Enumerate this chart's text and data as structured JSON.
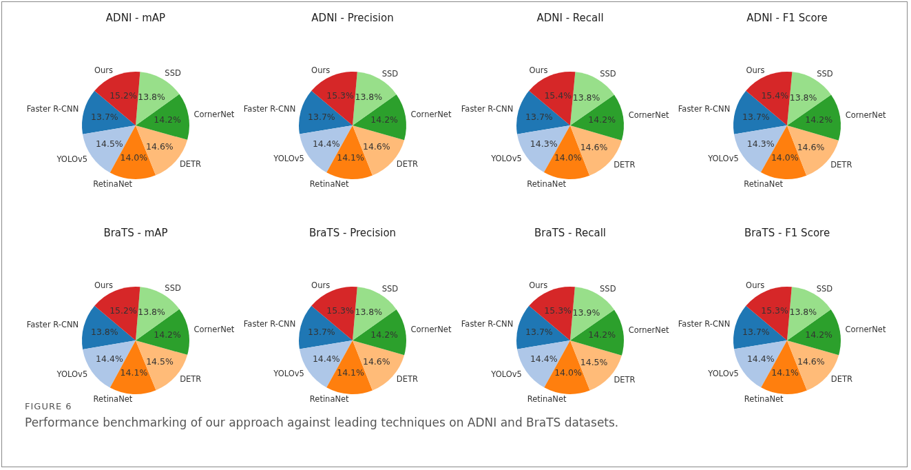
{
  "chart_data": [
    {
      "type": "pie",
      "title": "ADNI - mAP",
      "categories": [
        "Faster R-CNN",
        "YOLOv5",
        "RetinaNet",
        "DETR",
        "CornerNet",
        "SSD",
        "Ours"
      ],
      "values": [
        13.7,
        14.5,
        14.0,
        14.6,
        14.2,
        13.8,
        15.2
      ],
      "value_labels": [
        "13.7%",
        "14.5%",
        "14.0%",
        "14.6%",
        "14.2%",
        "13.8%",
        "15.2%"
      ],
      "colors": [
        "#1f77b4",
        "#aec7e8",
        "#ff7f0e",
        "#ffbb78",
        "#2ca02c",
        "#98df8a",
        "#d62728"
      ]
    },
    {
      "type": "pie",
      "title": "ADNI - Precision",
      "categories": [
        "Faster R-CNN",
        "YOLOv5",
        "RetinaNet",
        "DETR",
        "CornerNet",
        "SSD",
        "Ours"
      ],
      "values": [
        13.7,
        14.4,
        14.1,
        14.6,
        14.2,
        13.8,
        15.3
      ],
      "value_labels": [
        "13.7%",
        "14.4%",
        "14.1%",
        "14.6%",
        "14.2%",
        "13.8%",
        "15.3%"
      ],
      "colors": [
        "#1f77b4",
        "#aec7e8",
        "#ff7f0e",
        "#ffbb78",
        "#2ca02c",
        "#98df8a",
        "#d62728"
      ]
    },
    {
      "type": "pie",
      "title": "ADNI - Recall",
      "categories": [
        "Faster R-CNN",
        "YOLOv5",
        "RetinaNet",
        "DETR",
        "CornerNet",
        "SSD",
        "Ours"
      ],
      "values": [
        13.7,
        14.3,
        14.0,
        14.6,
        14.2,
        13.8,
        15.4
      ],
      "value_labels": [
        "13.7%",
        "14.3%",
        "14.0%",
        "14.6%",
        "14.2%",
        "13.8%",
        "15.4%"
      ],
      "colors": [
        "#1f77b4",
        "#aec7e8",
        "#ff7f0e",
        "#ffbb78",
        "#2ca02c",
        "#98df8a",
        "#d62728"
      ]
    },
    {
      "type": "pie",
      "title": "ADNI - F1 Score",
      "categories": [
        "Faster R-CNN",
        "YOLOv5",
        "RetinaNet",
        "DETR",
        "CornerNet",
        "SSD",
        "Ours"
      ],
      "values": [
        13.7,
        14.3,
        14.0,
        14.6,
        14.2,
        13.8,
        15.4
      ],
      "value_labels": [
        "13.7%",
        "14.3%",
        "14.0%",
        "14.6%",
        "14.2%",
        "13.8%",
        "15.4%"
      ],
      "colors": [
        "#1f77b4",
        "#aec7e8",
        "#ff7f0e",
        "#ffbb78",
        "#2ca02c",
        "#98df8a",
        "#d62728"
      ]
    },
    {
      "type": "pie",
      "title": "BraTS - mAP",
      "categories": [
        "Faster R-CNN",
        "YOLOv5",
        "RetinaNet",
        "DETR",
        "CornerNet",
        "SSD",
        "Ours"
      ],
      "values": [
        13.8,
        14.4,
        14.1,
        14.5,
        14.2,
        13.8,
        15.2
      ],
      "value_labels": [
        "13.8%",
        "14.4%",
        "14.1%",
        "14.5%",
        "14.2%",
        "13.8%",
        "15.2%"
      ],
      "colors": [
        "#1f77b4",
        "#aec7e8",
        "#ff7f0e",
        "#ffbb78",
        "#2ca02c",
        "#98df8a",
        "#d62728"
      ]
    },
    {
      "type": "pie",
      "title": "BraTS - Precision",
      "categories": [
        "Faster R-CNN",
        "YOLOv5",
        "RetinaNet",
        "DETR",
        "CornerNet",
        "SSD",
        "Ours"
      ],
      "values": [
        13.7,
        14.4,
        14.1,
        14.6,
        14.2,
        13.8,
        15.3
      ],
      "value_labels": [
        "13.7%",
        "14.4%",
        "14.1%",
        "14.6%",
        "14.2%",
        "13.8%",
        "15.3%"
      ],
      "colors": [
        "#1f77b4",
        "#aec7e8",
        "#ff7f0e",
        "#ffbb78",
        "#2ca02c",
        "#98df8a",
        "#d62728"
      ]
    },
    {
      "type": "pie",
      "title": "BraTS - Recall",
      "categories": [
        "Faster R-CNN",
        "YOLOv5",
        "RetinaNet",
        "DETR",
        "CornerNet",
        "SSD",
        "Ours"
      ],
      "values": [
        13.7,
        14.4,
        14.0,
        14.5,
        14.2,
        13.9,
        15.3
      ],
      "value_labels": [
        "13.7%",
        "14.4%",
        "14.0%",
        "14.5%",
        "14.2%",
        "13.9%",
        "15.3%"
      ],
      "colors": [
        "#1f77b4",
        "#aec7e8",
        "#ff7f0e",
        "#ffbb78",
        "#2ca02c",
        "#98df8a",
        "#d62728"
      ]
    },
    {
      "type": "pie",
      "title": "BraTS - F1 Score",
      "categories": [
        "Faster R-CNN",
        "YOLOv5",
        "RetinaNet",
        "DETR",
        "CornerNet",
        "SSD",
        "Ours"
      ],
      "values": [
        13.7,
        14.4,
        14.1,
        14.6,
        14.2,
        13.8,
        15.3
      ],
      "value_labels": [
        "13.7%",
        "14.4%",
        "14.1%",
        "14.6%",
        "14.2%",
        "13.8%",
        "15.3%"
      ],
      "colors": [
        "#1f77b4",
        "#aec7e8",
        "#ff7f0e",
        "#ffbb78",
        "#2ca02c",
        "#98df8a",
        "#d62728"
      ],
      "annotations": [
        "FIGURE 6",
        "Performance benchmarking of our approach against leading techniques on ADNI and BraTS datasets."
      ]
    }
  ]
}
